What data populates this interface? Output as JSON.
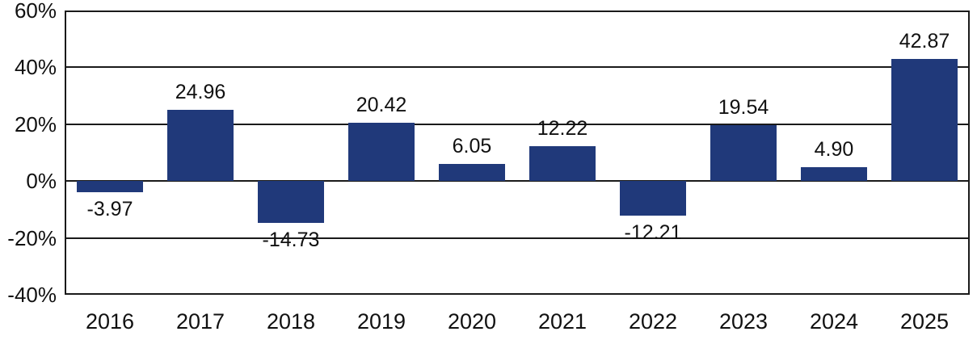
{
  "chart_data": {
    "type": "bar",
    "title": "",
    "xlabel": "",
    "ylabel": "",
    "categories": [
      "2016",
      "2017",
      "2018",
      "2019",
      "2020",
      "2021",
      "2022",
      "2023",
      "2024",
      "2025"
    ],
    "values": [
      -3.97,
      24.96,
      -14.73,
      20.42,
      6.05,
      12.22,
      -12.21,
      19.54,
      4.9,
      42.87
    ],
    "value_labels": [
      "-3.97",
      "24.96",
      "-14.73",
      "20.42",
      "6.05",
      "12.22",
      "-12.21",
      "19.54",
      "4.90",
      "42.87"
    ],
    "ylim": [
      -40,
      60
    ],
    "ytick_step": 20,
    "ytick_labels": [
      "60%",
      "40%",
      "20%",
      "0%",
      "-20%",
      "-40%"
    ],
    "grid": true,
    "legend": false,
    "bar_color": "#20397a",
    "axis_color": "#1a1a1a",
    "text_color": "#111111"
  }
}
